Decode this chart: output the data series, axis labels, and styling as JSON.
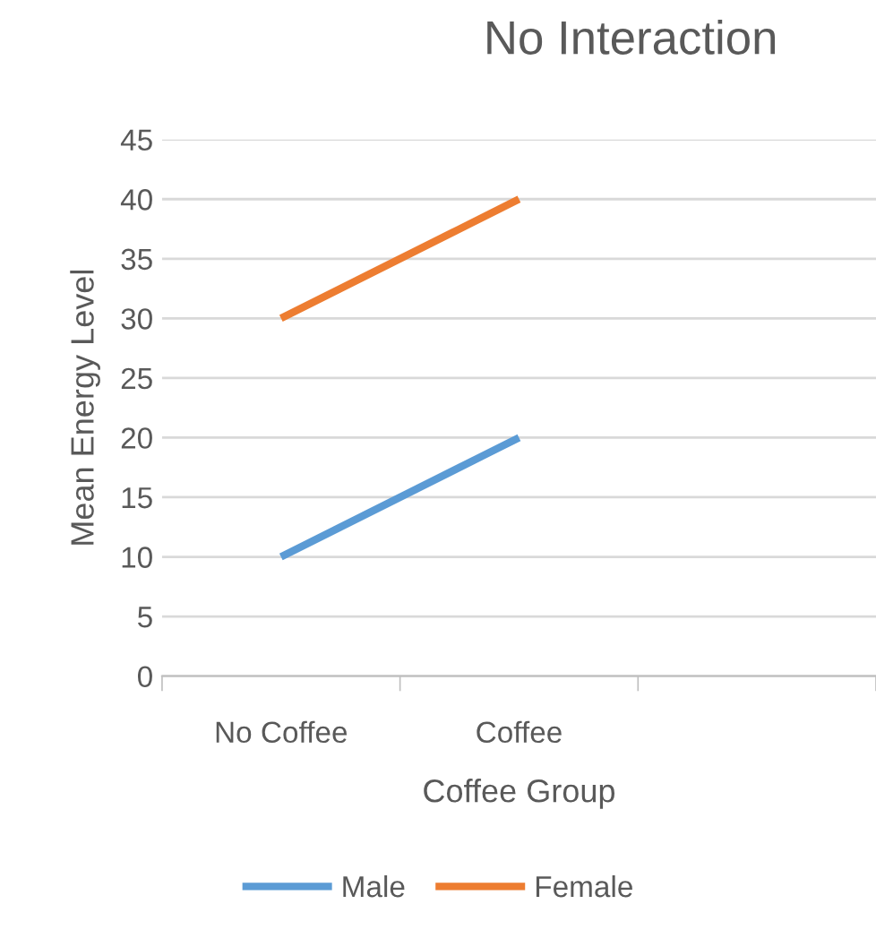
{
  "chart_data": {
    "type": "line",
    "title": "No Interaction",
    "xlabel": "Coffee Group",
    "ylabel": "Mean Energy Level",
    "categories": [
      "No Coffee",
      "Coffee",
      null
    ],
    "series": [
      {
        "name": "Male",
        "color": "#5b9bd5",
        "values": [
          10,
          20,
          null
        ]
      },
      {
        "name": "Female",
        "color": "#ed7d31",
        "values": [
          30,
          40,
          null
        ]
      }
    ],
    "ylim": [
      0,
      45
    ],
    "yticks": [
      0,
      5,
      10,
      15,
      20,
      25,
      30,
      35,
      40,
      45
    ],
    "grid": "y",
    "legend": "bottom",
    "marker": "none",
    "line_style": "solid"
  }
}
